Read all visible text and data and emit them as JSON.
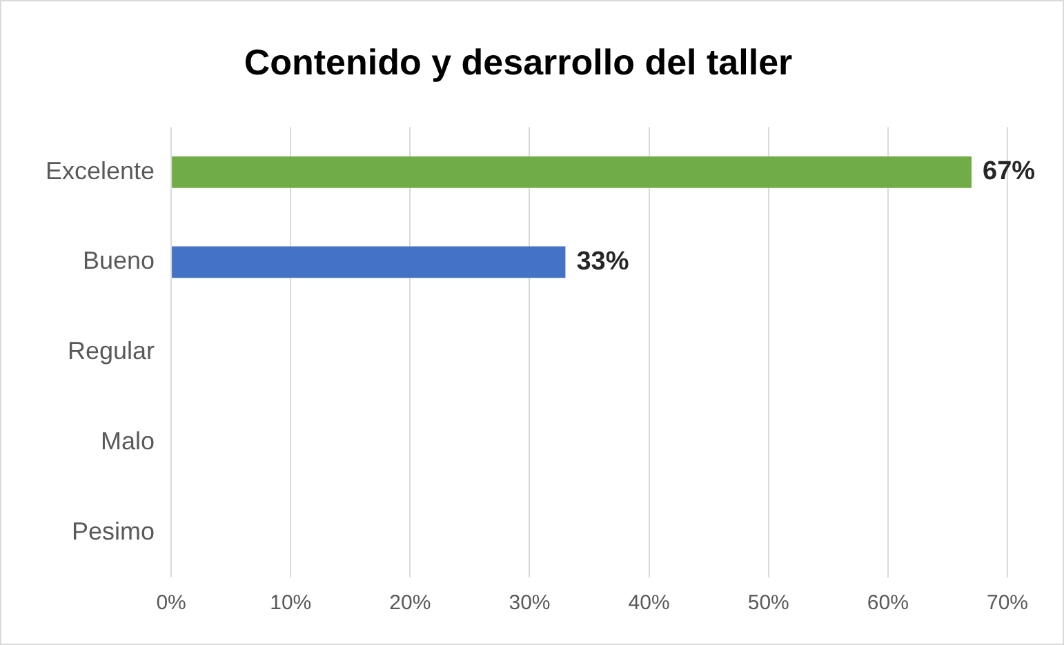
{
  "chart_data": {
    "type": "bar",
    "orientation": "horizontal",
    "title": "Contenido y desarrollo del taller",
    "categories": [
      "Excelente",
      "Bueno",
      "Regular",
      "Malo",
      "Pesimo"
    ],
    "values": [
      67,
      33,
      null,
      null,
      null
    ],
    "colors": [
      "#70ad47",
      "#4472c4",
      "#4472c4",
      "#4472c4",
      "#4472c4"
    ],
    "value_labels": [
      "67%",
      "33%",
      null,
      null,
      null
    ],
    "xlim": [
      0,
      70
    ],
    "xticks": [
      {
        "value": 0,
        "label": "0%"
      },
      {
        "value": 10,
        "label": "10%"
      },
      {
        "value": 20,
        "label": "20%"
      },
      {
        "value": 30,
        "label": "30%"
      },
      {
        "value": 40,
        "label": "40%"
      },
      {
        "value": 50,
        "label": "50%"
      },
      {
        "value": 60,
        "label": "60%"
      },
      {
        "value": 70,
        "label": "70%"
      }
    ],
    "grid": "x",
    "legend": false
  }
}
